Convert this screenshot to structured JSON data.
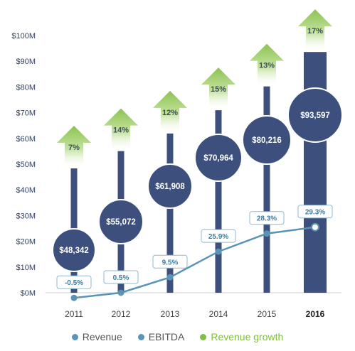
{
  "chart_data": {
    "type": "bar",
    "categories": [
      "2011",
      "2012",
      "2013",
      "2014",
      "2015",
      "2016"
    ],
    "highlight_category": "2016",
    "ylim": [
      0,
      100
    ],
    "y_ticks": [
      "$0M",
      "$10M",
      "$20M",
      "$30M",
      "$40M",
      "$50M",
      "$60M",
      "$70M",
      "$80M",
      "$90M",
      "$100M"
    ],
    "series": [
      {
        "name": "Revenue",
        "kind": "bar",
        "values": [
          48.342,
          55.072,
          61.908,
          70.964,
          80.216,
          93.597
        ],
        "labels": [
          "$48,342",
          "$55,072",
          "$61,908",
          "$70,964",
          "$80,216",
          "$93,597"
        ],
        "color": "#3d4f7c"
      },
      {
        "name": "EBITDA",
        "kind": "line",
        "values": [
          -0.5,
          0.5,
          9.5,
          25.9,
          28.3,
          29.3
        ],
        "y_values": [
          -2,
          0,
          6,
          16,
          23,
          25.5
        ],
        "labels": [
          "-0.5%",
          "0.5%",
          "9.5%",
          "25.9%",
          "28.3%",
          "29.3%"
        ],
        "color": "#5b93b6"
      },
      {
        "name": "Revenue growth",
        "kind": "arrow",
        "values": [
          7,
          14,
          12,
          15,
          13,
          17
        ],
        "labels": [
          "7%",
          "14%",
          "12%",
          "15%",
          "13%",
          "17%"
        ],
        "color": "#9ccd63"
      }
    ],
    "legend": [
      "Revenue",
      "EBITDA",
      "Revenue growth"
    ],
    "legend_position": "bottom",
    "grid": false
  },
  "colors": {
    "bar": "#3d4f7c",
    "line": "#5b93b6",
    "arrow": "#9ccd63",
    "axis_text": "#2f3f66",
    "legend_revenue": "#5b93b6",
    "legend_ebitda": "#5b93b6",
    "legend_growth": "#7fbf3f"
  }
}
